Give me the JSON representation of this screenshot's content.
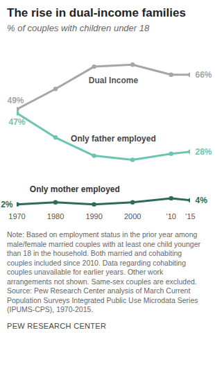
{
  "chart_data": {
    "type": "line",
    "title": "The rise in dual-income families",
    "subtitle": "% of couples with children under 18",
    "x": [
      1970,
      1980,
      1990,
      2000,
      2010,
      2015
    ],
    "xlim": [
      1970,
      2015
    ],
    "xticks": [
      1970,
      1980,
      1990,
      2000,
      {
        "value": 2010,
        "label": "'10"
      },
      {
        "value": 2015,
        "label": "'15"
      }
    ],
    "ylim": [
      0,
      75
    ],
    "tick_labels": "x",
    "series": [
      {
        "name": "Dual Income",
        "color": "#a6a6a6",
        "marker": "circle",
        "values": [
          49,
          59,
          70,
          71,
          66,
          66
        ],
        "value_labels": [
          "49%",
          null,
          null,
          null,
          null,
          "66%"
        ]
      },
      {
        "name": "Only father employed",
        "color": "#6cc5b0",
        "marker": "circle",
        "values": [
          47,
          35,
          26,
          24,
          27,
          28
        ],
        "value_labels": [
          "47%",
          null,
          null,
          null,
          null,
          "28%"
        ]
      },
      {
        "name": "Only mother employed",
        "color": "#2e6b5e",
        "marker": "circle",
        "values": [
          2,
          3,
          2,
          3,
          5,
          4
        ],
        "value_labels": [
          "2%",
          null,
          null,
          null,
          null,
          "4%"
        ]
      }
    ],
    "note": "Note: Based on employment status in the prior year among male/female married couples with at least one child younger than 18 in the household. Both married and cohabiting couples included since 2010. Data regarding cohabiting couples unavailable for earlier years. Other work arrangements not shown. Same-sex couples are excluded.",
    "source": "Source: Pew Research Center analysis of March Current Population Surveys Integrated Public Use Microdata Series (IPUMS-CPS), 1970-2015.",
    "credit": "PEW RESEARCH CENTER"
  }
}
